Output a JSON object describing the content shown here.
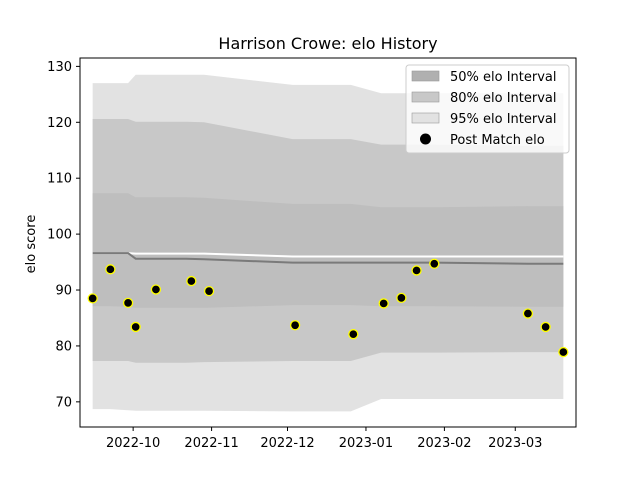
{
  "chart_data": {
    "type": "area",
    "title": "Harrison Crowe: elo History",
    "xlabel": "",
    "ylabel": "elo score",
    "xlim": [
      "2022-09-10",
      "2023-03-25"
    ],
    "ylim": [
      65.5,
      131.5
    ],
    "x_ticks": [
      "2022-10-01",
      "2022-11-01",
      "2022-12-01",
      "2023-01-01",
      "2023-02-01",
      "2023-03-01"
    ],
    "x_tick_labels": [
      "2022-10",
      "2022-11",
      "2022-12",
      "2023-01",
      "2023-02",
      "2023-03"
    ],
    "y_ticks": [
      70,
      80,
      90,
      100,
      110,
      120,
      130
    ],
    "y_tick_labels": [
      "70",
      "80",
      "90",
      "100",
      "110",
      "120",
      "130"
    ],
    "grid": false,
    "legend_position": "top-right",
    "legend": [
      {
        "label": "50% elo Interval",
        "color": "#b0b0b0",
        "kind": "band"
      },
      {
        "label": "80% elo Interval",
        "color": "#c8c8c8",
        "kind": "band"
      },
      {
        "label": "95% elo Interval",
        "color": "#e2e2e2",
        "kind": "band"
      },
      {
        "label": "Post Match elo",
        "color": "#000000",
        "kind": "marker"
      }
    ],
    "x": [
      "2022-09-15",
      "2022-09-22",
      "2022-09-29",
      "2022-10-02",
      "2022-10-08",
      "2022-10-22",
      "2022-10-29",
      "2022-12-03",
      "2022-12-26",
      "2023-01-07",
      "2023-01-14",
      "2023-01-21",
      "2023-01-28",
      "2023-03-06",
      "2023-03-13",
      "2023-03-20"
    ],
    "elo_mean": [
      96.6,
      96.6,
      96.6,
      95.6,
      95.6,
      95.6,
      95.5,
      94.9,
      94.9,
      94.9,
      94.9,
      94.9,
      94.9,
      94.7,
      94.7,
      94.7
    ],
    "elo_mean_alt": [
      96.6,
      96.6,
      96.6,
      96.5,
      96.5,
      96.5,
      96.5,
      96.0,
      96.0,
      96.0,
      96.0,
      96.0,
      96.0,
      96.0,
      96.0,
      96.0
    ],
    "bands": [
      {
        "name": "95% elo Interval",
        "color": "#e2e2e2",
        "lower": [
          68.7,
          68.7,
          68.5,
          68.4,
          68.4,
          68.4,
          68.4,
          68.3,
          68.3,
          70.5,
          70.5,
          70.5,
          70.5,
          70.5,
          70.5,
          70.5
        ],
        "upper": [
          127.0,
          127.0,
          127.0,
          128.5,
          128.5,
          128.5,
          128.5,
          126.7,
          126.7,
          125.2,
          125.2,
          125.2,
          125.2,
          125.2,
          125.2,
          125.2
        ]
      },
      {
        "name": "80% elo Interval",
        "color": "#c8c8c8",
        "lower": [
          77.3,
          77.3,
          77.3,
          77.0,
          77.0,
          77.0,
          77.1,
          77.3,
          77.3,
          78.8,
          78.8,
          78.8,
          78.8,
          78.9,
          78.9,
          78.9
        ],
        "upper": [
          120.6,
          120.6,
          120.6,
          120.1,
          120.1,
          120.1,
          120.0,
          117.0,
          117.0,
          116.0,
          116.0,
          116.0,
          116.0,
          115.8,
          115.8,
          115.8
        ]
      },
      {
        "name": "50% elo Interval",
        "color": "#bebebe",
        "lower": [
          87.1,
          87.1,
          87.0,
          86.8,
          86.8,
          86.8,
          86.8,
          87.3,
          87.3,
          87.1,
          87.1,
          87.1,
          87.1,
          87.0,
          87.0,
          87.0
        ],
        "upper": [
          107.3,
          107.3,
          107.3,
          106.6,
          106.6,
          106.6,
          106.5,
          105.4,
          105.4,
          104.8,
          104.8,
          104.8,
          104.8,
          105.0,
          105.0,
          105.0
        ]
      }
    ],
    "series": [
      {
        "name": "Post Match elo",
        "x": [
          "2022-09-15",
          "2022-09-22",
          "2022-09-29",
          "2022-10-02",
          "2022-10-10",
          "2022-10-24",
          "2022-10-31",
          "2022-12-04",
          "2022-12-27",
          "2023-01-08",
          "2023-01-15",
          "2023-01-21",
          "2023-01-28",
          "2023-03-06",
          "2023-03-13",
          "2023-03-20"
        ],
        "values": [
          88.5,
          93.7,
          87.7,
          83.4,
          90.1,
          91.6,
          89.8,
          83.7,
          82.1,
          87.6,
          88.6,
          93.5,
          94.7,
          85.8,
          83.4,
          78.9
        ]
      }
    ]
  }
}
